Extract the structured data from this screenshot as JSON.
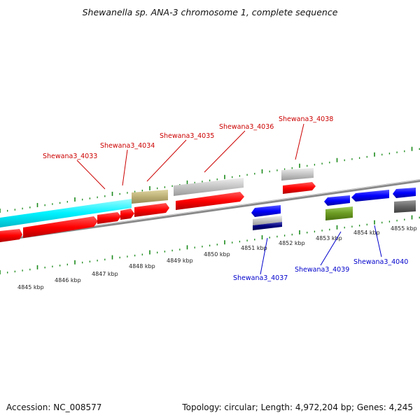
{
  "title": "Shewanella sp. ANA-3 chromosome 1, complete sequence",
  "footer": {
    "accession": "Accession: NC_008577",
    "summary": "Topology: circular; Length: 4,972,204 bp; Genes: 4,245"
  },
  "colors": {
    "plus_gene": "#ff0000",
    "minus_gene": "#0000ff",
    "tick": "#1a8a1a",
    "backbone": "#888888",
    "plus_label": "#cc0000",
    "minus_label": "#0000cc"
  },
  "kbp_labels": [
    "4845 kbp",
    "4846 kbp",
    "4847 kbp",
    "4848 kbp",
    "4849 kbp",
    "4850 kbp",
    "4851 kbp",
    "4852 kbp",
    "4853 kbp",
    "4854 kbp",
    "4855 kbp"
  ],
  "top_genes": [
    "Shewana3_4033",
    "Shewana3_4034",
    "Shewana3_4035",
    "Shewana3_4036",
    "Shewana3_4038"
  ],
  "bottom_genes": [
    "Shewana3_4037",
    "Shewana3_4039",
    "Shewana3_4040"
  ]
}
